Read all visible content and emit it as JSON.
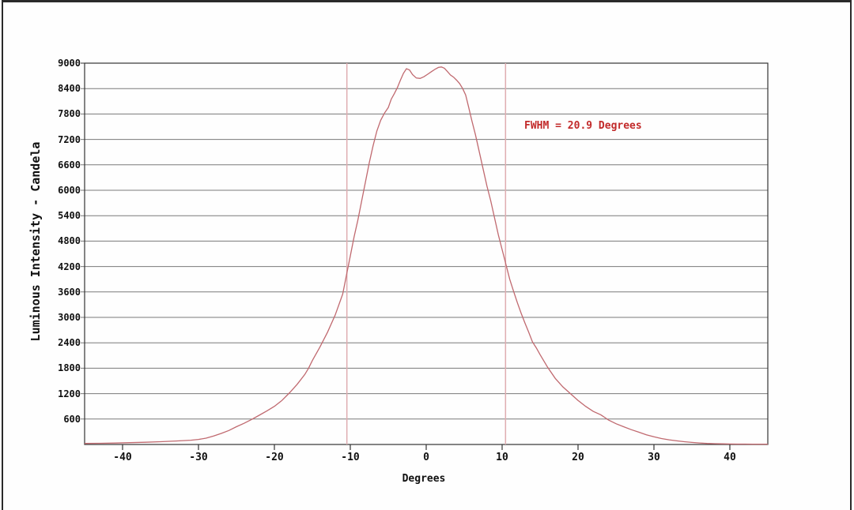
{
  "colors": {
    "curve": "#c0696f",
    "fwhm_line": "#dfadb1",
    "annotation": "#c22a2a",
    "grid": "#7a7a7a",
    "axis": "#333333",
    "text": "#101010",
    "frame": "#2a2a2a",
    "background": "#fefefe"
  },
  "chart_data": {
    "type": "line",
    "title": "",
    "xlabel": "Degrees",
    "ylabel": "Luminous Intensity - Candela",
    "xlim": [
      -45,
      45
    ],
    "ylim": [
      0,
      9000
    ],
    "x_ticks": [
      -40,
      -30,
      -20,
      -10,
      0,
      10,
      20,
      30,
      40
    ],
    "y_ticks": [
      600,
      1200,
      1800,
      2400,
      3000,
      3600,
      4200,
      4800,
      5400,
      6000,
      6600,
      7200,
      7800,
      8400,
      9000
    ],
    "grid": "horizontal",
    "legend": "none",
    "annotation": {
      "text": "FWHM = 20.9 Degrees",
      "color": "#c22a2a"
    },
    "fwhm_degrees": 20.9,
    "fwhm_marker_lines_deg": [
      -10.45,
      10.45
    ],
    "peak_candela": 8910,
    "series": [
      {
        "name": "luminous-intensity-vs-angle",
        "color": "#c0696f",
        "points": [
          [
            -45,
            25
          ],
          [
            -43,
            28
          ],
          [
            -41,
            33
          ],
          [
            -39,
            42
          ],
          [
            -37,
            52
          ],
          [
            -35,
            65
          ],
          [
            -33,
            82
          ],
          [
            -31,
            100
          ],
          [
            -30,
            120
          ],
          [
            -29,
            150
          ],
          [
            -28,
            200
          ],
          [
            -27,
            260
          ],
          [
            -26,
            330
          ],
          [
            -25,
            420
          ],
          [
            -24,
            500
          ],
          [
            -23,
            590
          ],
          [
            -22,
            690
          ],
          [
            -21,
            790
          ],
          [
            -20,
            900
          ],
          [
            -19,
            1040
          ],
          [
            -18,
            1220
          ],
          [
            -17,
            1420
          ],
          [
            -16,
            1650
          ],
          [
            -15.5,
            1800
          ],
          [
            -15,
            1980
          ],
          [
            -14,
            2300
          ],
          [
            -13,
            2650
          ],
          [
            -12,
            3050
          ],
          [
            -11,
            3550
          ],
          [
            -10.5,
            4000
          ],
          [
            -10,
            4450
          ],
          [
            -9.5,
            4900
          ],
          [
            -9,
            5300
          ],
          [
            -8.5,
            5750
          ],
          [
            -8,
            6200
          ],
          [
            -7.5,
            6650
          ],
          [
            -7,
            7050
          ],
          [
            -6.5,
            7400
          ],
          [
            -6,
            7650
          ],
          [
            -5.5,
            7820
          ],
          [
            -5,
            7950
          ],
          [
            -4.6,
            8150
          ],
          [
            -4.2,
            8280
          ],
          [
            -3.8,
            8420
          ],
          [
            -3.4,
            8600
          ],
          [
            -3,
            8760
          ],
          [
            -2.6,
            8870
          ],
          [
            -2.2,
            8840
          ],
          [
            -1.8,
            8730
          ],
          [
            -1.3,
            8650
          ],
          [
            -0.8,
            8640
          ],
          [
            -0.3,
            8680
          ],
          [
            0.2,
            8740
          ],
          [
            0.7,
            8800
          ],
          [
            1.2,
            8860
          ],
          [
            1.6,
            8900
          ],
          [
            2,
            8910
          ],
          [
            2.4,
            8880
          ],
          [
            2.8,
            8800
          ],
          [
            3.2,
            8720
          ],
          [
            3.6,
            8670
          ],
          [
            4,
            8600
          ],
          [
            4.4,
            8520
          ],
          [
            4.8,
            8400
          ],
          [
            5.2,
            8250
          ],
          [
            5.6,
            7950
          ],
          [
            6,
            7650
          ],
          [
            6.5,
            7300
          ],
          [
            7,
            6900
          ],
          [
            7.5,
            6500
          ],
          [
            8,
            6100
          ],
          [
            8.5,
            5750
          ],
          [
            9,
            5350
          ],
          [
            9.5,
            4950
          ],
          [
            10,
            4600
          ],
          [
            10.5,
            4250
          ],
          [
            11,
            3900
          ],
          [
            11.5,
            3620
          ],
          [
            12,
            3350
          ],
          [
            12.5,
            3100
          ],
          [
            13,
            2870
          ],
          [
            13.5,
            2650
          ],
          [
            14,
            2420
          ],
          [
            14.5,
            2280
          ],
          [
            15,
            2120
          ],
          [
            16,
            1820
          ],
          [
            17,
            1560
          ],
          [
            18,
            1360
          ],
          [
            19,
            1200
          ],
          [
            20,
            1040
          ],
          [
            21,
            900
          ],
          [
            22,
            780
          ],
          [
            23,
            700
          ],
          [
            24,
            580
          ],
          [
            25,
            490
          ],
          [
            26,
            420
          ],
          [
            27,
            350
          ],
          [
            28,
            290
          ],
          [
            29,
            230
          ],
          [
            30,
            180
          ],
          [
            31,
            140
          ],
          [
            32,
            110
          ],
          [
            33,
            85
          ],
          [
            34,
            65
          ],
          [
            35,
            48
          ],
          [
            36,
            35
          ],
          [
            37,
            25
          ],
          [
            38,
            18
          ],
          [
            39,
            14
          ],
          [
            40,
            12
          ],
          [
            41,
            10
          ],
          [
            42,
            9
          ],
          [
            43,
            8
          ],
          [
            44,
            7
          ],
          [
            45,
            7
          ]
        ]
      }
    ]
  }
}
